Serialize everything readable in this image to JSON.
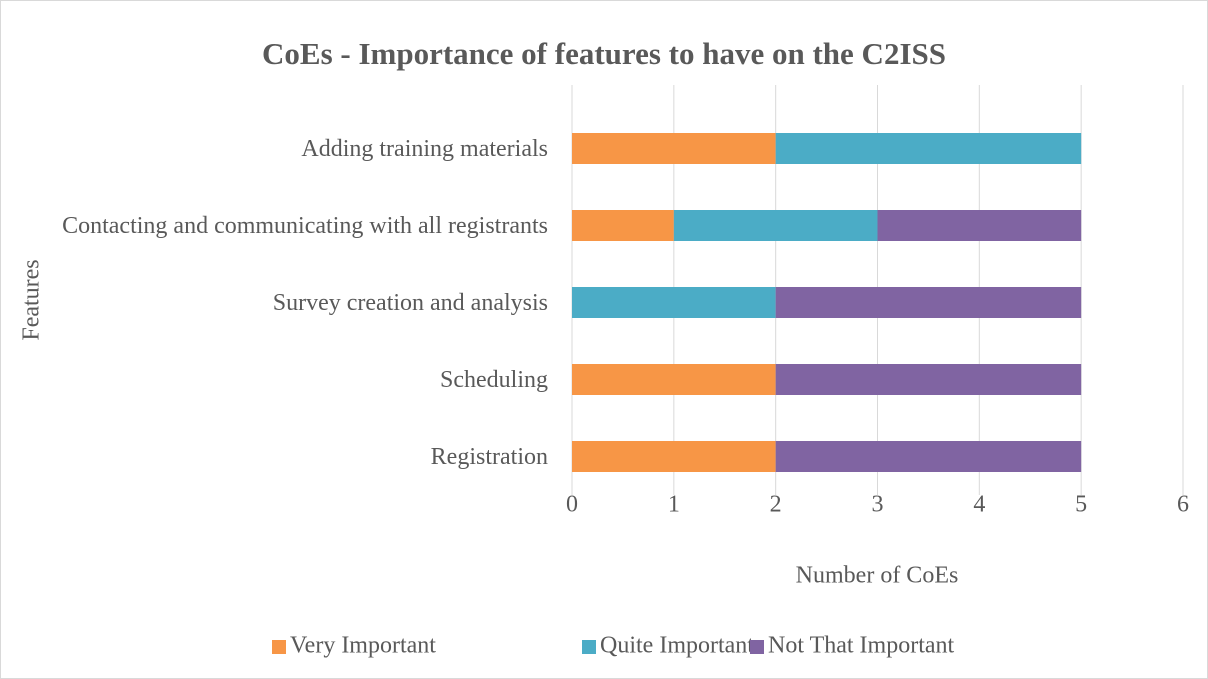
{
  "chart_data": {
    "type": "stacked_bar_horizontal",
    "title": "CoEs - Importance of features to have on the C2ISS",
    "x_label": "Number of CoEs",
    "y_label": "Features",
    "categories": [
      "Adding training materials",
      "Contacting and communicating with all registrants",
      "Survey creation and analysis",
      "Scheduling",
      "Registration"
    ],
    "series": [
      {
        "name": "Very Important",
        "color": "#f79646",
        "values": [
          2,
          1,
          0,
          2,
          2
        ]
      },
      {
        "name": "Quite Important",
        "color": "#4bacc6",
        "values": [
          3,
          2,
          2,
          0,
          0
        ]
      },
      {
        "name": "Not That Important",
        "color": "#8064a2",
        "values": [
          0,
          2,
          3,
          3,
          3
        ]
      }
    ],
    "xlim": [
      0,
      6
    ],
    "xticks": [
      0,
      1,
      2,
      3,
      4,
      5,
      6
    ],
    "grid": true,
    "legend": "bottom"
  }
}
